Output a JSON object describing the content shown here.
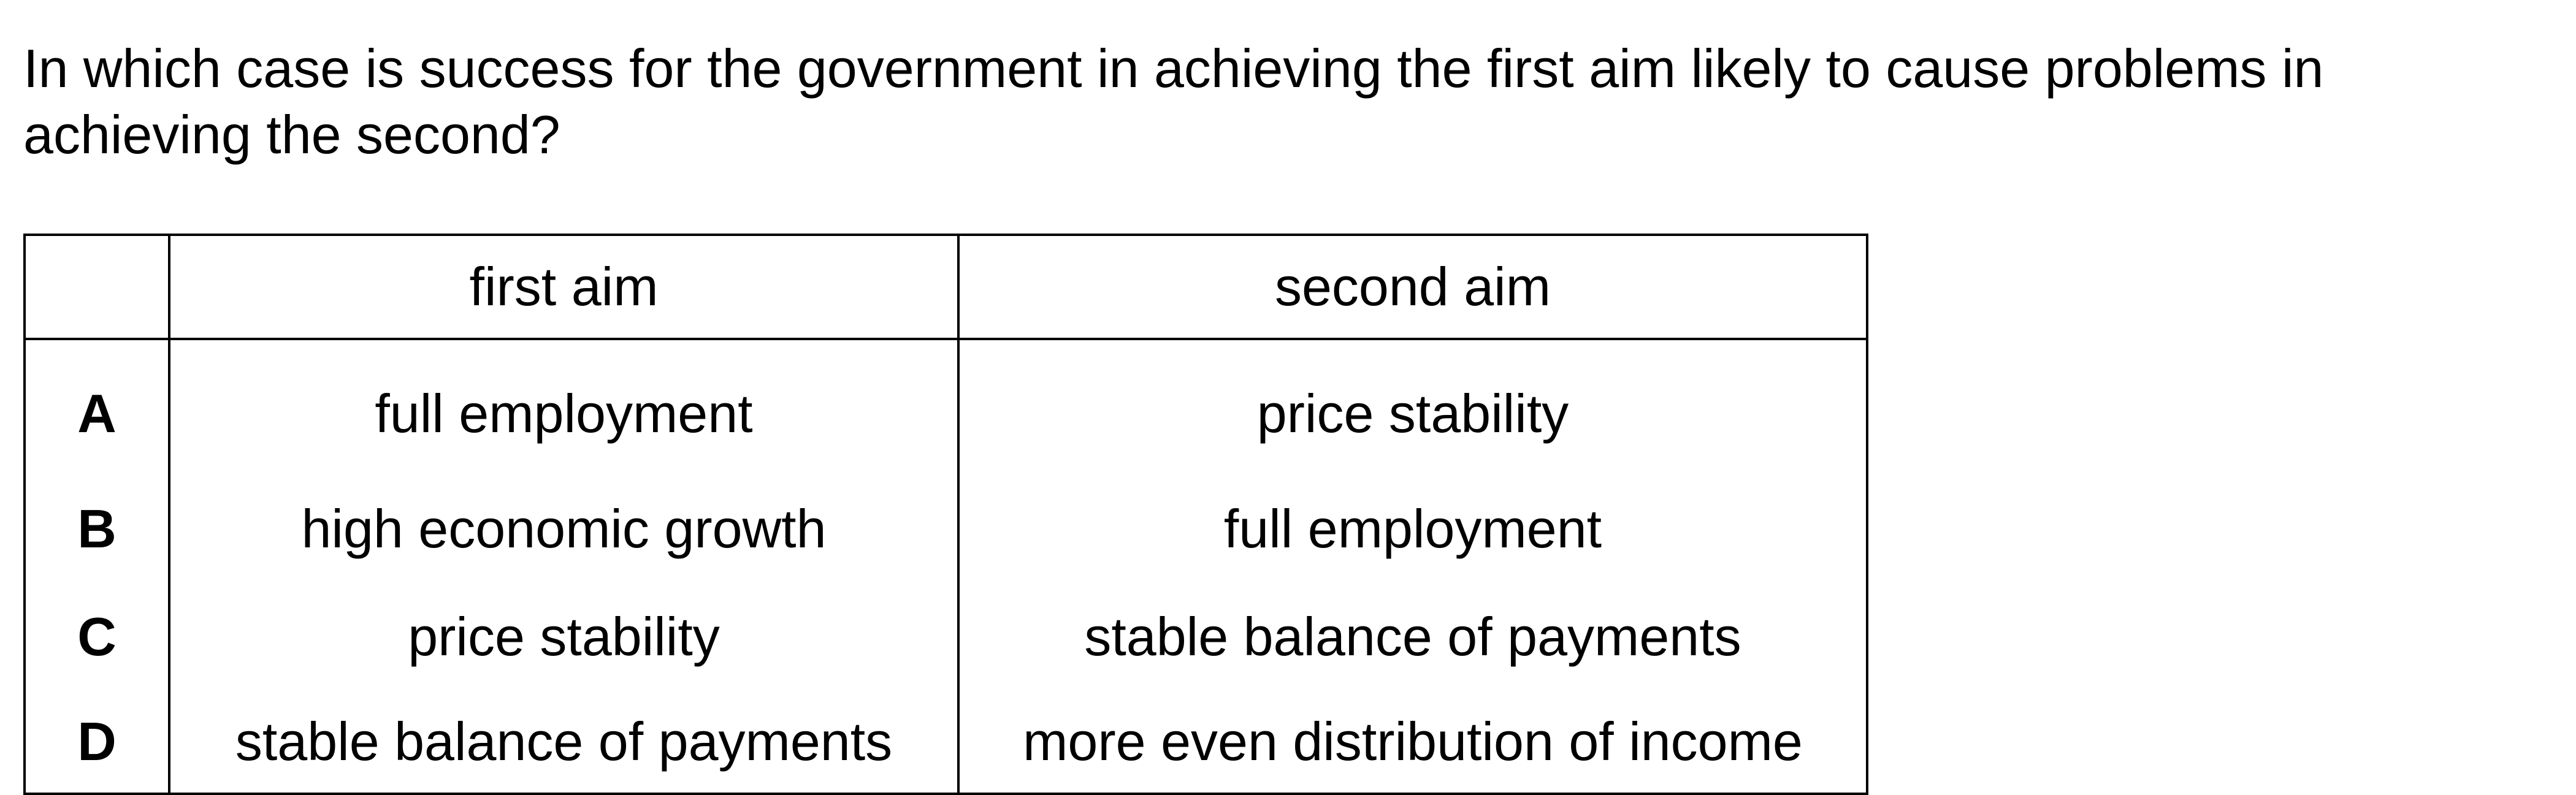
{
  "question": "In which case is success for the government in achieving the first aim likely to cause problems in achieving the second?",
  "table": {
    "headers": [
      "",
      "first aim",
      "second aim"
    ],
    "rows": [
      {
        "letter": "A",
        "first_aim": "full employment",
        "second_aim": "price stability"
      },
      {
        "letter": "B",
        "first_aim": "high economic growth",
        "second_aim": "full employment"
      },
      {
        "letter": "C",
        "first_aim": "price stability",
        "second_aim": "stable balance of payments"
      },
      {
        "letter": "D",
        "first_aim": "stable balance of payments",
        "second_aim": "more even distribution of income"
      }
    ]
  }
}
